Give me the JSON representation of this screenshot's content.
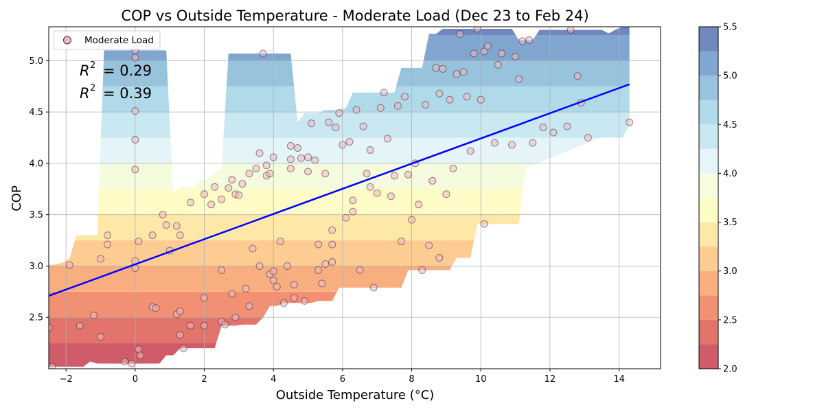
{
  "chart_data": {
    "type": "scatter",
    "title": "COP vs Outside Temperature - Moderate Load (Dec 23 to Feb 24)",
    "xlabel": "Outside Temperature (°C)",
    "ylabel": "COP",
    "xlim": [
      -2.5,
      15.2
    ],
    "ylim": [
      2.0,
      5.33
    ],
    "xticks": [
      -2,
      0,
      2,
      4,
      6,
      8,
      10,
      12,
      14
    ],
    "xtick_labels": [
      "−2",
      "0",
      "2",
      "4",
      "6",
      "8",
      "10",
      "12",
      "14"
    ],
    "yticks": [
      2.5,
      3.0,
      3.5,
      4.0,
      4.5,
      5.0
    ],
    "ytick_labels": [
      "2.5",
      "3.0",
      "3.5",
      "4.0",
      "4.5",
      "5.0"
    ],
    "grid": true,
    "legend": {
      "position": "upper-left",
      "entries": [
        "Moderate Load"
      ]
    },
    "annotations": {
      "r2_train": "= 0.29",
      "r2_test": "= 0.39"
    },
    "series": [
      {
        "name": "Moderate Load",
        "points": [
          [
            -2.5,
            2.4
          ],
          [
            -2.4,
            2.02
          ],
          [
            -1.9,
            3.01
          ],
          [
            -1.6,
            2.42
          ],
          [
            -1.2,
            2.52
          ],
          [
            -1.0,
            3.07
          ],
          [
            -1.0,
            2.31
          ],
          [
            -0.8,
            3.3
          ],
          [
            -0.8,
            3.21
          ],
          [
            -0.3,
            2.07
          ],
          [
            0.0,
            5.1
          ],
          [
            0.0,
            5.03
          ],
          [
            0.0,
            4.51
          ],
          [
            0.0,
            4.23
          ],
          [
            0.0,
            3.94
          ],
          [
            0.0,
            3.05
          ],
          [
            0.0,
            2.98
          ],
          [
            -0.1,
            2.05
          ],
          [
            0.1,
            2.19
          ],
          [
            0.15,
            2.13
          ],
          [
            0.1,
            3.24
          ],
          [
            0.5,
            3.3
          ],
          [
            0.5,
            2.6
          ],
          [
            0.6,
            2.59
          ],
          [
            0.8,
            3.5
          ],
          [
            0.9,
            3.4
          ],
          [
            1.0,
            3.15
          ],
          [
            1.2,
            2.53
          ],
          [
            1.2,
            3.39
          ],
          [
            1.3,
            3.3
          ],
          [
            1.3,
            2.33
          ],
          [
            1.3,
            2.56
          ],
          [
            1.4,
            2.2
          ],
          [
            1.6,
            3.62
          ],
          [
            1.6,
            2.42
          ],
          [
            2.0,
            3.7
          ],
          [
            2.0,
            2.69
          ],
          [
            2.0,
            2.42
          ],
          [
            2.2,
            3.6
          ],
          [
            2.3,
            3.77
          ],
          [
            2.5,
            3.65
          ],
          [
            2.5,
            2.96
          ],
          [
            2.5,
            2.46
          ],
          [
            2.6,
            2.43
          ],
          [
            2.7,
            3.76
          ],
          [
            2.8,
            3.84
          ],
          [
            2.9,
            3.7
          ],
          [
            2.9,
            2.5
          ],
          [
            2.8,
            2.73
          ],
          [
            3.0,
            3.69
          ],
          [
            3.1,
            3.8
          ],
          [
            3.2,
            2.78
          ],
          [
            3.3,
            3.9
          ],
          [
            3.3,
            2.61
          ],
          [
            3.4,
            3.17
          ],
          [
            3.5,
            3.95
          ],
          [
            3.6,
            4.1
          ],
          [
            3.6,
            3.0
          ],
          [
            3.7,
            5.07
          ],
          [
            3.8,
            3.98
          ],
          [
            3.8,
            3.88
          ],
          [
            3.9,
            3.9
          ],
          [
            3.9,
            2.92
          ],
          [
            4.0,
            2.86
          ],
          [
            4.0,
            4.06
          ],
          [
            4.0,
            2.95
          ],
          [
            4.1,
            2.8
          ],
          [
            4.2,
            3.24
          ],
          [
            4.3,
            2.64
          ],
          [
            4.4,
            3.0
          ],
          [
            4.5,
            4.17
          ],
          [
            4.5,
            4.04
          ],
          [
            4.5,
            3.95
          ],
          [
            4.6,
            2.82
          ],
          [
            4.6,
            2.69
          ],
          [
            4.7,
            4.15
          ],
          [
            4.8,
            4.05
          ],
          [
            4.9,
            2.66
          ],
          [
            5.0,
            4.06
          ],
          [
            5.0,
            3.92
          ],
          [
            5.1,
            4.39
          ],
          [
            5.2,
            4.03
          ],
          [
            5.3,
            2.96
          ],
          [
            5.3,
            3.21
          ],
          [
            5.4,
            2.83
          ],
          [
            5.5,
            3.9
          ],
          [
            5.5,
            3.02
          ],
          [
            5.6,
            4.4
          ],
          [
            5.7,
            3.35
          ],
          [
            5.7,
            3.21
          ],
          [
            5.7,
            3.04
          ],
          [
            5.8,
            4.35
          ],
          [
            5.9,
            4.49
          ],
          [
            6.0,
            4.18
          ],
          [
            6.1,
            3.47
          ],
          [
            6.2,
            4.21
          ],
          [
            6.3,
            3.64
          ],
          [
            6.3,
            3.53
          ],
          [
            6.4,
            4.52
          ],
          [
            6.5,
            2.96
          ],
          [
            6.6,
            4.36
          ],
          [
            6.7,
            3.9
          ],
          [
            6.8,
            4.13
          ],
          [
            6.8,
            3.77
          ],
          [
            6.9,
            2.79
          ],
          [
            7.0,
            3.71
          ],
          [
            7.1,
            4.54
          ],
          [
            7.2,
            4.69
          ],
          [
            7.3,
            4.24
          ],
          [
            7.4,
            3.68
          ],
          [
            7.5,
            3.88
          ],
          [
            7.6,
            4.56
          ],
          [
            7.7,
            3.24
          ],
          [
            7.8,
            4.65
          ],
          [
            7.9,
            3.89
          ],
          [
            8.0,
            3.45
          ],
          [
            8.1,
            4.0
          ],
          [
            8.2,
            3.6
          ],
          [
            8.3,
            2.96
          ],
          [
            8.4,
            4.57
          ],
          [
            8.5,
            3.2
          ],
          [
            8.6,
            3.83
          ],
          [
            8.7,
            4.93
          ],
          [
            8.8,
            4.68
          ],
          [
            8.8,
            3.08
          ],
          [
            8.9,
            4.92
          ],
          [
            9.0,
            3.7
          ],
          [
            9.1,
            4.62
          ],
          [
            9.2,
            3.95
          ],
          [
            9.3,
            4.87
          ],
          [
            9.4,
            5.26
          ],
          [
            9.5,
            4.89
          ],
          [
            9.6,
            4.65
          ],
          [
            9.7,
            4.12
          ],
          [
            9.8,
            5.07
          ],
          [
            9.9,
            5.31
          ],
          [
            10.0,
            4.62
          ],
          [
            10.1,
            5.09
          ],
          [
            10.1,
            3.41
          ],
          [
            10.2,
            5.14
          ],
          [
            10.4,
            4.2
          ],
          [
            10.5,
            4.96
          ],
          [
            10.6,
            5.07
          ],
          [
            10.9,
            4.18
          ],
          [
            11.0,
            5.04
          ],
          [
            11.1,
            4.82
          ],
          [
            11.2,
            5.19
          ],
          [
            11.4,
            5.2
          ],
          [
            11.5,
            4.2
          ],
          [
            11.8,
            4.35
          ],
          [
            12.1,
            4.3
          ],
          [
            12.5,
            4.36
          ],
          [
            12.6,
            5.3
          ],
          [
            12.8,
            4.85
          ],
          [
            12.9,
            4.59
          ],
          [
            13.1,
            4.25
          ],
          [
            14.3,
            4.4
          ]
        ]
      }
    ],
    "regression_line": {
      "x": [
        -2.5,
        14.3
      ],
      "y": [
        2.71,
        4.77
      ]
    },
    "contour_field": {
      "slope_x": 0.0,
      "slope_y": 1.0
    },
    "colorbar": {
      "ticks": [
        2.0,
        2.5,
        3.0,
        3.5,
        4.0,
        4.5,
        5.0,
        5.5
      ],
      "tick_labels": [
        "2.0",
        "2.5",
        "3.0",
        "3.5",
        "4.0",
        "4.5",
        "5.0",
        "5.5"
      ],
      "levels": [
        2.0,
        2.25,
        2.5,
        2.75,
        3.0,
        3.25,
        3.5,
        3.75,
        4.0,
        4.25,
        4.5,
        4.75,
        5.0,
        5.25,
        5.5
      ],
      "colors": [
        "#c8404f",
        "#de5c52",
        "#ef7d5b",
        "#f9a16a",
        "#fcc47f",
        "#fee49a",
        "#fefbbd",
        "#f4fbd8",
        "#e0f3f8",
        "#c1e4ef",
        "#a3d3e6",
        "#85b9d8",
        "#6b97c8",
        "#5872b3"
      ]
    },
    "colors": {
      "regression_line": "#0000ff",
      "marker_face": "#f4b6c2",
      "marker_edge": "#333333"
    }
  }
}
